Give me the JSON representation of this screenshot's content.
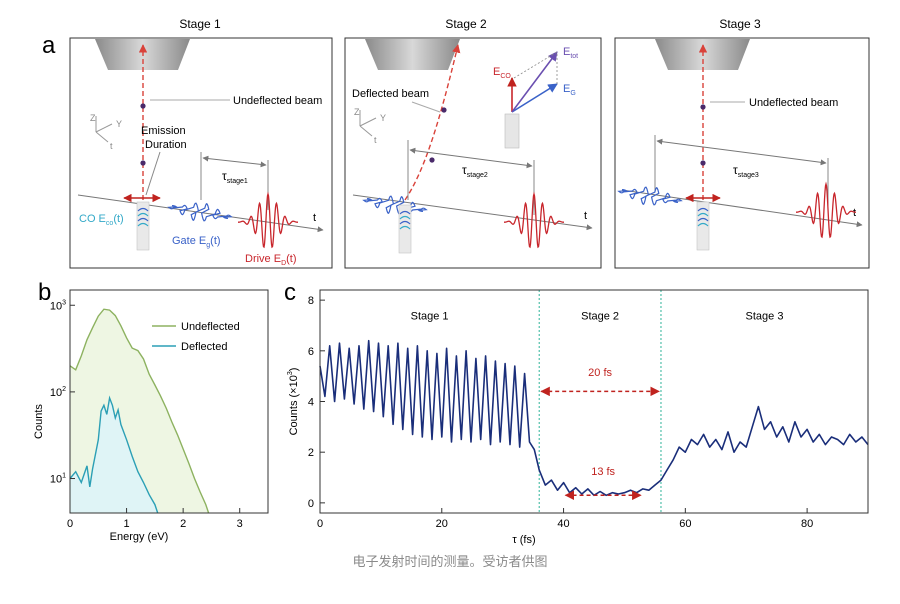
{
  "panel_a": {
    "letter": "a",
    "stage1": {
      "title": "Stage 1",
      "beam": "Undeflected beam",
      "emission1": "Emission",
      "emission2": "Duration",
      "tau_main": "τ",
      "tau_sub": "stage1",
      "t_axis": "t",
      "co_label": "CO E",
      "co_sub": "co",
      "co_arg": "(t)",
      "gate_label": "Gate E",
      "gate_sub": "g",
      "gate_arg": "(t)",
      "drive_label": "Drive E",
      "drive_sub": "D",
      "drive_arg": "(t)",
      "axis_z": "Z",
      "axis_y": "Y",
      "axis_t": "t"
    },
    "stage2": {
      "title": "Stage 2",
      "beam": "Deflected beam",
      "tau_main": "τ",
      "tau_sub": "stage2",
      "t_axis": "t",
      "vec_co": "E",
      "vec_co_sub": "CO",
      "vec_tot": "E",
      "vec_tot_sub": "tot",
      "vec_g": "E",
      "vec_g_sub": "G",
      "axis_z": "Z",
      "axis_y": "Y",
      "axis_t": "t"
    },
    "stage3": {
      "title": "Stage 3",
      "beam": "Undeflected beam",
      "tau_main": "τ",
      "tau_sub": "stage3",
      "t_axis": "t"
    }
  },
  "panel_b": {
    "letter": "b"
  },
  "panel_c": {
    "letter": "c"
  },
  "caption": "电子发射时间的测量。受访者供图",
  "colors": {
    "beam_red": "#d9423a",
    "pulse_red": "#c8262c",
    "gate_blue": "#3a62c8",
    "co_cyan": "#33a9c8",
    "vec_purple": "#6a4fb0",
    "trace_navy": "#1a2e7a",
    "green_line": "#8db260",
    "green_fill": "#eef6e3",
    "cyan_line": "#2b9fb5",
    "cyan_fill": "#dff4f6"
  },
  "chart_data": [
    {
      "type": "area",
      "panel": "b",
      "xlabel": "Energy (eV)",
      "ylabel": "Counts",
      "xlim": [
        0,
        3.5
      ],
      "ylim": [
        4,
        1500
      ],
      "yscale": "log",
      "xticks": [
        0,
        1,
        2,
        3
      ],
      "yticks": [
        {
          "base": "10",
          "exp": "1",
          "value": 10
        },
        {
          "base": "10",
          "exp": "2",
          "value": 100
        },
        {
          "base": "10",
          "exp": "3",
          "value": 1000
        }
      ],
      "legend": "upper-right",
      "series": [
        {
          "name": "Undeflected",
          "x": [
            0,
            0.1,
            0.2,
            0.3,
            0.4,
            0.5,
            0.6,
            0.7,
            0.8,
            0.9,
            1.0,
            1.1,
            1.2,
            1.3,
            1.4,
            1.5,
            1.6,
            1.7,
            1.8,
            1.9,
            2.0,
            2.1,
            2.2,
            2.3,
            2.4,
            2.45
          ],
          "y": [
            200,
            180,
            260,
            400,
            550,
            750,
            900,
            880,
            760,
            580,
            420,
            320,
            300,
            240,
            160,
            120,
            90,
            65,
            45,
            32,
            22,
            15,
            10,
            7,
            5,
            4
          ]
        },
        {
          "name": "Deflected",
          "x": [
            0,
            0.1,
            0.2,
            0.3,
            0.35,
            0.4,
            0.5,
            0.55,
            0.6,
            0.65,
            0.7,
            0.75,
            0.8,
            0.85,
            0.9,
            1.0,
            1.1,
            1.2,
            1.3,
            1.4,
            1.5,
            1.55
          ],
          "y": [
            10,
            12,
            9,
            14,
            8,
            13,
            28,
            60,
            70,
            55,
            85,
            70,
            50,
            62,
            42,
            28,
            18,
            12,
            9,
            6.5,
            5,
            4
          ]
        }
      ]
    },
    {
      "type": "line",
      "panel": "c",
      "xlabel": "τ (fs)",
      "ylabel_main": "Counts (×10",
      "ylabel_exp": "3",
      "ylabel_end": ")",
      "xlim": [
        0,
        90
      ],
      "ylim": [
        -0.4,
        8.4
      ],
      "xticks": [
        0,
        20,
        40,
        60,
        80
      ],
      "yticks": [
        0,
        2,
        4,
        6,
        8
      ],
      "stage_labels": [
        {
          "text": "Stage 1",
          "x": 18,
          "y": 7.4
        },
        {
          "text": "Stage 2",
          "x": 46,
          "y": 7.4
        },
        {
          "text": "Stage 3",
          "x": 73,
          "y": 7.4
        }
      ],
      "boundaries": [
        36,
        56
      ],
      "annotations": [
        {
          "text": "20 fs",
          "x1": 36,
          "x2": 56,
          "y": 4.4,
          "label_y": 5.0
        },
        {
          "text": "13 fs",
          "x1": 40,
          "x2": 53,
          "y": 0.3,
          "label_y": 1.1
        }
      ],
      "series": [
        {
          "x": [
            0,
            0.8,
            1.6,
            2.4,
            3.2,
            4.0,
            4.8,
            5.6,
            6.4,
            7.2,
            8.0,
            8.8,
            9.6,
            10.4,
            11.2,
            12.0,
            12.8,
            13.6,
            14.4,
            15.2,
            16.0,
            16.8,
            17.6,
            18.4,
            19.2,
            20.0,
            20.8,
            21.6,
            22.4,
            23.2,
            24.0,
            24.8,
            25.6,
            26.4,
            27.2,
            28.0,
            28.8,
            29.6,
            30.4,
            31.2,
            32.0,
            32.8,
            33.6,
            34.4,
            35.2,
            36.0,
            37.0,
            38.0,
            39.0,
            40.0,
            41.0,
            42.0,
            43.0,
            44.0,
            45.0,
            46.0,
            47.0,
            48.0,
            49.0,
            50.0,
            51.0,
            52.0,
            53.0,
            54.0,
            55.0,
            56.0,
            57.0,
            58.0,
            59.0,
            60.0,
            61.0,
            62.0,
            63.0,
            64.0,
            65.0,
            66.0,
            67.0,
            68.0,
            69.0,
            70.0,
            71.0,
            72.0,
            73.0,
            74.0,
            75.0,
            76.0,
            77.0,
            78.0,
            79.0,
            80.0,
            81.0,
            82.0,
            83.0,
            84.0,
            85.0,
            86.0,
            87.0,
            88.0,
            89.0,
            90.0
          ],
          "y": [
            5.4,
            4.2,
            6.2,
            4.0,
            6.3,
            4.1,
            6.1,
            3.9,
            6.2,
            3.7,
            6.4,
            3.6,
            6.3,
            3.4,
            6.2,
            3.1,
            6.3,
            2.9,
            6.1,
            2.7,
            6.2,
            2.6,
            6.0,
            2.5,
            5.9,
            2.6,
            6.1,
            2.4,
            5.8,
            2.5,
            6.0,
            2.4,
            5.7,
            2.5,
            5.8,
            2.3,
            5.6,
            2.4,
            5.5,
            2.3,
            5.4,
            2.2,
            5.1,
            2.4,
            2.1,
            1.3,
            0.7,
            0.9,
            0.5,
            0.8,
            0.4,
            0.6,
            0.35,
            0.55,
            0.3,
            0.45,
            0.3,
            0.4,
            0.35,
            0.4,
            0.5,
            0.4,
            0.55,
            0.5,
            0.7,
            0.9,
            1.3,
            1.7,
            2.2,
            2.0,
            2.5,
            2.3,
            2.7,
            2.2,
            2.5,
            2.1,
            2.8,
            2.0,
            2.4,
            2.2,
            3.0,
            3.8,
            2.9,
            3.2,
            2.6,
            3.0,
            2.4,
            3.2,
            2.6,
            2.9,
            2.4,
            2.7,
            2.3,
            2.6,
            2.5,
            2.3,
            2.7,
            2.4,
            2.6,
            2.3
          ]
        }
      ]
    }
  ]
}
